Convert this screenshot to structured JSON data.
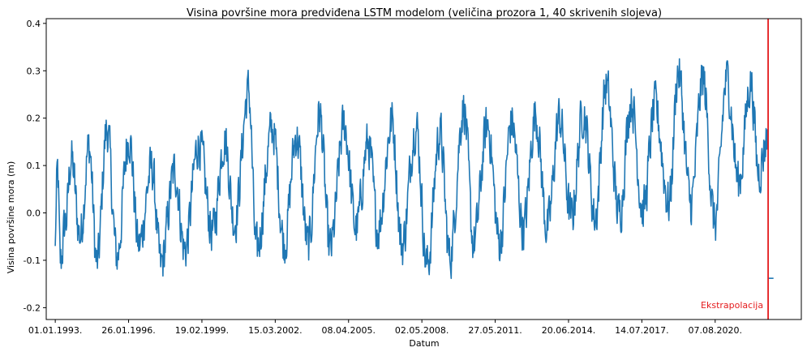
{
  "chart_data": {
    "type": "line",
    "title": "Visina površine mora predviđena LSTM modelom (veličina prozora 1, 40 skrivenih slojeva)",
    "xlabel": "Datum",
    "ylabel": "Visina površine mora (m)",
    "x_ticks": [
      "01.01.1993.",
      "26.01.1996.",
      "19.02.1999.",
      "15.03.2002.",
      "08.04.2005.",
      "02.05.2008.",
      "27.05.2011.",
      "20.06.2014.",
      "14.07.2017.",
      "07.08.2020."
    ],
    "y_ticks": [
      "-0.2",
      "-0.1",
      "0.0",
      "0.1",
      "0.2",
      "0.3",
      "0.4"
    ],
    "xlim": [
      "1992-08-16",
      "2024-03-15"
    ],
    "ylim": [
      -0.225,
      0.41
    ],
    "grid": false,
    "series": [
      {
        "color": "#1f77b4",
        "x_range": [
          "1993-01-01",
          "2022-10-20"
        ],
        "sample_interval_days": 7,
        "values_note_free_points": [
          [
            "1993-01-01",
            -0.07
          ],
          [
            "1993-02-05",
            0.088
          ],
          [
            "1993-03-20",
            -0.165
          ],
          [
            "1993-06-10",
            -0.05
          ],
          [
            "1993-09-01",
            0.125
          ],
          [
            "1994-01-15",
            -0.09
          ],
          [
            "1994-06-01",
            0.16
          ],
          [
            "1994-10-01",
            -0.17
          ],
          [
            "1995-03-01",
            0.21
          ],
          [
            "1995-08-01",
            -0.15
          ],
          [
            "1996-02-01",
            0.19
          ],
          [
            "1996-07-01",
            -0.12
          ],
          [
            "1997-01-15",
            0.1
          ],
          [
            "1997-06-01",
            -0.175
          ],
          [
            "1998-01-01",
            0.09
          ],
          [
            "1998-06-01",
            -0.13
          ],
          [
            "1999-01-01",
            0.17
          ],
          [
            "1999-08-01",
            -0.08
          ],
          [
            "2000-02-01",
            0.18
          ],
          [
            "2000-07-01",
            -0.05
          ],
          [
            "2001-02-01",
            0.315
          ],
          [
            "2001-06-01",
            -0.135
          ],
          [
            "2002-02-01",
            0.21
          ],
          [
            "2002-08-01",
            -0.11
          ],
          [
            "2003-02-01",
            0.19
          ],
          [
            "2003-08-01",
            -0.12
          ],
          [
            "2004-01-20",
            0.25
          ],
          [
            "2004-07-01",
            -0.13
          ],
          [
            "2005-02-01",
            0.22
          ],
          [
            "2005-08-01",
            -0.07
          ],
          [
            "2006-02-01",
            0.17
          ],
          [
            "2006-07-01",
            -0.07
          ],
          [
            "2007-02-01",
            0.23
          ],
          [
            "2007-07-01",
            -0.12
          ],
          [
            "2008-02-01",
            0.22
          ],
          [
            "2008-07-20",
            -0.175
          ],
          [
            "2009-02-01",
            0.2
          ],
          [
            "2009-07-01",
            -0.15
          ],
          [
            "2010-02-01",
            0.27
          ],
          [
            "2010-07-01",
            -0.11
          ],
          [
            "2011-02-01",
            0.22
          ],
          [
            "2011-08-01",
            -0.11
          ],
          [
            "2012-02-01",
            0.23
          ],
          [
            "2012-08-01",
            -0.07
          ],
          [
            "2013-02-01",
            0.25
          ],
          [
            "2013-08-01",
            -0.07
          ],
          [
            "2014-02-01",
            0.24
          ],
          [
            "2014-08-01",
            -0.04
          ],
          [
            "2015-02-01",
            0.26
          ],
          [
            "2015-08-01",
            -0.04
          ],
          [
            "2016-01-15",
            0.33
          ],
          [
            "2016-08-01",
            -0.03
          ],
          [
            "2017-02-01",
            0.29
          ],
          [
            "2017-08-01",
            -0.02
          ],
          [
            "2018-02-01",
            0.27
          ],
          [
            "2018-09-01",
            0.0
          ],
          [
            "2019-01-20",
            0.37
          ],
          [
            "2019-08-01",
            0.0
          ],
          [
            "2020-02-01",
            0.35
          ],
          [
            "2020-08-01",
            -0.055
          ],
          [
            "2021-02-01",
            0.35
          ],
          [
            "2021-08-01",
            0.06
          ],
          [
            "2022-02-01",
            0.34
          ],
          [
            "2022-06-01",
            0.09
          ],
          [
            "2022-10-20",
            0.19
          ]
        ]
      }
    ],
    "extrapolation_line": {
      "date": "2022-10-25",
      "color": "#e41a1c",
      "label": "Ekstrapolacija"
    },
    "extrapolated_value": {
      "x_range": [
        "2022-10-25",
        "2023-01-15"
      ],
      "value": -0.138
    }
  }
}
